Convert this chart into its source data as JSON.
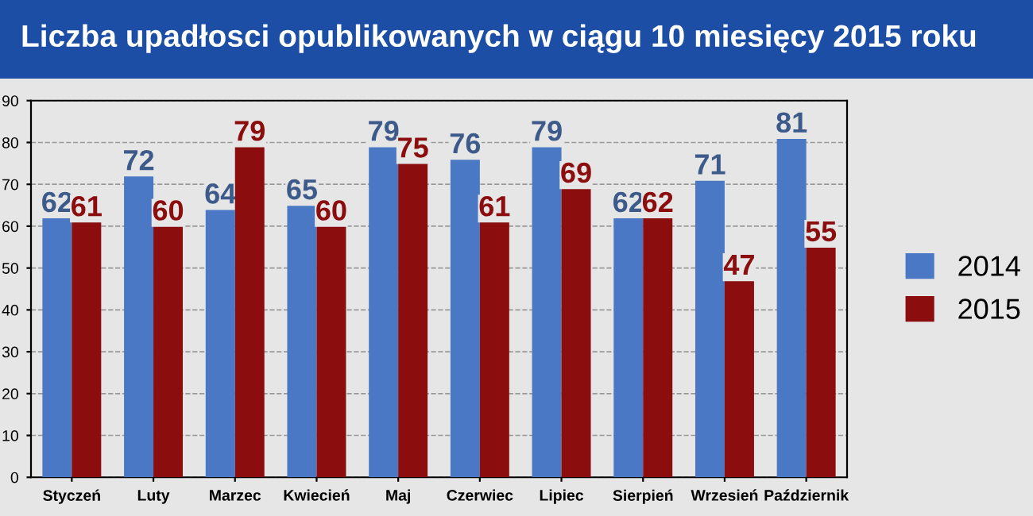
{
  "chart_data": {
    "type": "bar",
    "title": "Liczba upadłosci opublikowanych w ciągu 10 miesięcy 2015 roku",
    "categories": [
      "Styczeń",
      "Luty",
      "Marzec",
      "Kwiecień",
      "Maj",
      "Czerwiec",
      "Lipiec",
      "Sierpień",
      "Wrzesień",
      "Październik"
    ],
    "series": [
      {
        "name": "2014",
        "color": "#4a78c4",
        "values": [
          62,
          72,
          64,
          65,
          79,
          76,
          79,
          62,
          71,
          81
        ]
      },
      {
        "name": "2015",
        "color": "#8b0d0d",
        "values": [
          61,
          60,
          79,
          60,
          75,
          61,
          69,
          62,
          47,
          55
        ]
      }
    ],
    "ylim": [
      0,
      90
    ],
    "yticks": [
      0,
      10,
      20,
      30,
      40,
      50,
      60,
      70,
      80,
      90
    ],
    "grid": "y",
    "legend": "right",
    "data_labels": true
  }
}
